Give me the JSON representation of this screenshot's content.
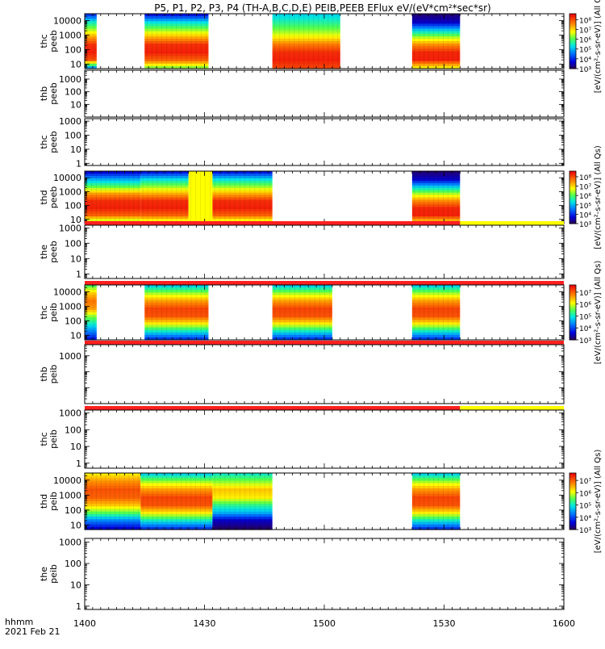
{
  "figure": {
    "title": "P5, P1, P2, P3, P4 (TH-A,B,C,D,E) PEIB,PEEB EFlux eV/(eV*cm²*sec*sr)",
    "time_axis_label_1": "hhmm",
    "time_axis_label_2": "2021 Feb 21"
  },
  "colors": {
    "flag_red": "#ff2020",
    "flag_yellow": "#ffff00"
  },
  "chart_data": {
    "type": "heatmap",
    "x_range": [
      "14:00",
      "16:00"
    ],
    "x_ticks": [
      {
        "t": 0,
        "label": "1400"
      },
      {
        "t": 30,
        "label": "1430"
      },
      {
        "t": 60,
        "label": "1500"
      },
      {
        "t": 90,
        "label": "1530"
      },
      {
        "t": 120,
        "label": "1600"
      }
    ],
    "panels": [
      {
        "id": "thc-peeb",
        "probe": "thc",
        "product": "peeb",
        "y_log": true,
        "ylim": [
          5,
          30000
        ],
        "yticks": [
          {
            "v": 10,
            "label": "10"
          },
          {
            "v": 100,
            "label": "100"
          },
          {
            "v": 1000,
            "label": "1000"
          },
          {
            "v": 10000,
            "label": "10000"
          }
        ],
        "colorbar": {
          "unit": "[eV/(cm²-s-sr-eV)] (All Qs)",
          "ticks": [
            {
              "v": 3,
              "label": "10³"
            },
            {
              "v": 4,
              "label": "10⁴"
            },
            {
              "v": 5,
              "label": "10⁵"
            },
            {
              "v": 6,
              "label": "10⁶"
            },
            {
              "v": 7,
              "label": "10⁷"
            },
            {
              "v": 8,
              "label": "10⁸"
            }
          ],
          "range": [
            3,
            8.6
          ]
        },
        "blocks": [
          {
            "t0": 0,
            "t1": 3,
            "style": "electron-edge"
          },
          {
            "t0": 15,
            "t1": 31,
            "style": "electron"
          },
          {
            "t0": 47,
            "t1": 64,
            "style": "electron-cool"
          },
          {
            "t0": 82,
            "t1": 94,
            "style": "electron-dark"
          }
        ]
      },
      {
        "id": "thb-peeb",
        "probe": "thb",
        "product": "peeb",
        "y_log": true,
        "ylim": [
          1,
          5000
        ],
        "yticks": [
          {
            "v": 10,
            "label": "10"
          },
          {
            "v": 100,
            "label": "100"
          },
          {
            "v": 1000,
            "label": "1000"
          }
        ],
        "blocks": []
      },
      {
        "id": "thc-peeb-2",
        "probe": "thc",
        "product": "peeb",
        "y_log": true,
        "ylim": [
          0.7,
          1500
        ],
        "yticks": [
          {
            "v": 1,
            "label": "1"
          },
          {
            "v": 10,
            "label": "10"
          },
          {
            "v": 100,
            "label": "100"
          },
          {
            "v": 1000,
            "label": "1000"
          }
        ],
        "blocks": []
      },
      {
        "id": "thd-peeb",
        "probe": "thd",
        "product": "peeb",
        "y_log": true,
        "ylim": [
          5,
          30000
        ],
        "yticks": [
          {
            "v": 10,
            "label": "10"
          },
          {
            "v": 100,
            "label": "100"
          },
          {
            "v": 1000,
            "label": "1000"
          },
          {
            "v": 10000,
            "label": "10000"
          }
        ],
        "colorbar": {
          "unit": "[eV/(cm²-s-sr-eV)] (All Qs)",
          "ticks": [
            {
              "v": 3,
              "label": "10³"
            },
            {
              "v": 4,
              "label": "10⁴"
            },
            {
              "v": 5,
              "label": "10⁵"
            },
            {
              "v": 6,
              "label": "10⁶"
            },
            {
              "v": 7,
              "label": "10⁷"
            },
            {
              "v": 8,
              "label": "10⁸"
            }
          ],
          "range": [
            3,
            8.6
          ]
        },
        "blocks": [
          {
            "t0": 0,
            "t1": 14,
            "style": "electron-wide"
          },
          {
            "t0": 14,
            "t1": 26,
            "style": "electron"
          },
          {
            "t0": 26,
            "t1": 32,
            "style": "yellow"
          },
          {
            "t0": 32,
            "t1": 47,
            "style": "electron"
          },
          {
            "t0": 82,
            "t1": 94,
            "style": "electron-dark"
          }
        ]
      },
      {
        "id": "the-peeb",
        "probe": "the",
        "product": "peeb",
        "y_log": true,
        "ylim": [
          0.5,
          1500
        ],
        "yticks": [
          {
            "v": 1,
            "label": "1"
          },
          {
            "v": 10,
            "label": "10"
          },
          {
            "v": 100,
            "label": "100"
          },
          {
            "v": 1000,
            "label": "1000"
          }
        ],
        "blocks": [],
        "flag": {
          "red": [
            0,
            94
          ],
          "yellow": [
            94,
            120
          ]
        }
      },
      {
        "id": "thc-peib",
        "probe": "thc",
        "product": "peib",
        "y_log": true,
        "ylim": [
          5,
          30000
        ],
        "yticks": [
          {
            "v": 10,
            "label": "10"
          },
          {
            "v": 100,
            "label": "100"
          },
          {
            "v": 1000,
            "label": "1000"
          },
          {
            "v": 10000,
            "label": "10000"
          }
        ],
        "colorbar": {
          "unit": "[eV/(cm²-s-sr-eV)] (All Qs)",
          "ticks": [
            {
              "v": 3,
              "label": "10³"
            },
            {
              "v": 4,
              "label": "10⁴"
            },
            {
              "v": 5,
              "label": "10⁵"
            },
            {
              "v": 6,
              "label": "10⁶"
            },
            {
              "v": 7,
              "label": "10⁷"
            }
          ],
          "range": [
            3,
            7.6
          ]
        },
        "blocks": [
          {
            "t0": 0,
            "t1": 3,
            "style": "ion-edge"
          },
          {
            "t0": 15,
            "t1": 31,
            "style": "ion"
          },
          {
            "t0": 47,
            "t1": 62,
            "style": "ion"
          },
          {
            "t0": 82,
            "t1": 94,
            "style": "ion"
          }
        ],
        "flag": {
          "red": [
            0,
            120
          ]
        }
      },
      {
        "id": "thb-peib",
        "probe": "thb",
        "product": "peib",
        "y_log": true,
        "ylim": [
          1,
          5000
        ],
        "yticks": [
          {
            "v": 1000,
            "label": "1000"
          }
        ],
        "blocks": [],
        "flag": {
          "red": [
            0,
            120
          ]
        }
      },
      {
        "id": "thc-peib-2",
        "probe": "thc",
        "product": "peib",
        "y_log": true,
        "ylim": [
          0.5,
          1500
        ],
        "yticks": [
          {
            "v": 1,
            "label": "1"
          },
          {
            "v": 10,
            "label": "10"
          },
          {
            "v": 100,
            "label": "100"
          },
          {
            "v": 1000,
            "label": "1000"
          }
        ],
        "blocks": [],
        "flag": {
          "red": [
            0,
            94
          ],
          "yellow": [
            94,
            120
          ]
        }
      },
      {
        "id": "thd-peib",
        "probe": "thd",
        "product": "peib",
        "y_log": true,
        "ylim": [
          5,
          30000
        ],
        "yticks": [
          {
            "v": 10,
            "label": "10"
          },
          {
            "v": 100,
            "label": "100"
          },
          {
            "v": 1000,
            "label": "1000"
          },
          {
            "v": 10000,
            "label": "10000"
          }
        ],
        "colorbar": {
          "unit": "[eV/(cm²-s-sr-eV)] (All Qs)",
          "ticks": [
            {
              "v": 3,
              "label": "10³"
            },
            {
              "v": 4,
              "label": "10⁴"
            },
            {
              "v": 5,
              "label": "10⁵"
            },
            {
              "v": 6,
              "label": "10⁶"
            },
            {
              "v": 7,
              "label": "10⁷"
            }
          ],
          "range": [
            3,
            7.6
          ]
        },
        "blocks": [
          {
            "t0": 0,
            "t1": 14,
            "style": "ion-wide"
          },
          {
            "t0": 14,
            "t1": 32,
            "style": "ion"
          },
          {
            "t0": 32,
            "t1": 47,
            "style": "ion-dark"
          },
          {
            "t0": 82,
            "t1": 94,
            "style": "ion"
          }
        ]
      },
      {
        "id": "the-peib",
        "probe": "the",
        "product": "peib",
        "y_log": true,
        "ylim": [
          0.7,
          1500
        ],
        "yticks": [
          {
            "v": 1,
            "label": "1"
          },
          {
            "v": 10,
            "label": "10"
          },
          {
            "v": 100,
            "label": "100"
          },
          {
            "v": 1000,
            "label": "1000"
          }
        ],
        "blocks": []
      }
    ]
  }
}
